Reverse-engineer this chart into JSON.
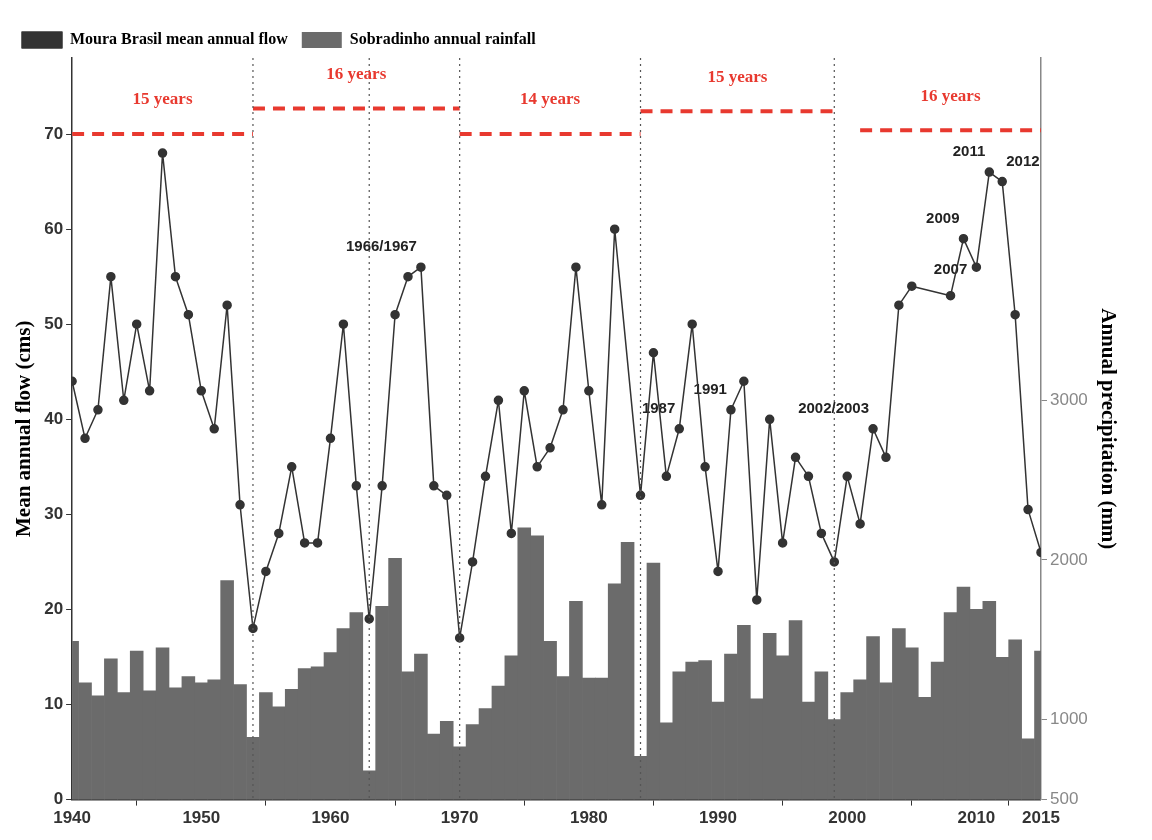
{
  "chart_data": {
    "type": "bar",
    "xlabel": null,
    "ylabel": "Mean annual flow (cms)",
    "y2label": "Annual precipitation (mm)",
    "x": [
      1940,
      1941,
      1942,
      1943,
      1944,
      1945,
      1946,
      1947,
      1948,
      1949,
      1950,
      1951,
      1952,
      1953,
      1954,
      1955,
      1956,
      1957,
      1958,
      1959,
      1960,
      1961,
      1962,
      1963,
      1964,
      1965,
      1966,
      1967,
      1968,
      1969,
      1970,
      1971,
      1972,
      1973,
      1974,
      1975,
      1976,
      1977,
      1978,
      1979,
      1980,
      1981,
      1982,
      1983,
      1984,
      1985,
      1986,
      1987,
      1988,
      1989,
      1990,
      1991,
      1992,
      1993,
      1994,
      1995,
      1996,
      1997,
      1998,
      1999,
      2000,
      2001,
      2002,
      2003,
      2004,
      2005,
      2006,
      2007,
      2008,
      2009,
      2010,
      2011,
      2012,
      2013,
      2014,
      2015
    ],
    "series": [
      {
        "name": "Moura Brasil mean annual flow",
        "type": "line",
        "axis": "y",
        "color": "#333333",
        "marker": "circle",
        "line_style": "solid",
        "values": [
          44,
          38,
          41,
          55,
          42,
          50,
          43,
          68,
          55,
          51,
          43,
          39,
          52,
          31,
          18,
          24,
          28,
          35,
          27,
          27,
          38,
          50,
          33,
          19,
          33,
          51,
          55,
          56,
          33,
          32,
          17,
          25,
          34,
          42,
          28,
          43,
          35,
          37,
          41,
          56,
          43,
          31,
          60,
          null,
          32,
          47,
          34,
          39,
          50,
          35,
          24,
          41,
          44,
          21,
          40,
          27,
          36,
          34,
          28,
          25,
          34,
          29,
          39,
          36,
          52,
          54,
          null,
          null,
          53,
          59,
          56,
          66,
          65,
          51,
          30.5,
          26
        ]
      },
      {
        "name": "Sobradinho annual rainfall",
        "axis": "y2",
        "color": "#6b6b6b",
        "values": [
          1490,
          1230,
          1150,
          1380,
          1170,
          1430,
          1180,
          1450,
          1200,
          1270,
          1230,
          1250,
          1870,
          1220,
          890,
          1170,
          1080,
          1190,
          1320,
          1330,
          1420,
          1570,
          1670,
          680,
          1710,
          2010,
          1300,
          1410,
          910,
          990,
          830,
          970,
          1070,
          1210,
          1400,
          2200,
          2150,
          1490,
          1270,
          1740,
          1260,
          1260,
          1850,
          2110,
          770,
          1980,
          980,
          1300,
          1360,
          1370,
          1110,
          1410,
          1590,
          1130,
          1540,
          1400,
          1620,
          1110,
          1300,
          1000,
          1170,
          1250,
          1520,
          1230,
          1570,
          1450,
          1140,
          1360,
          1670,
          1830,
          1690,
          1740,
          1390,
          1500,
          880,
          1430
        ]
      },
      {
        "name": "15 years",
        "type": "line",
        "axis": "y",
        "color": "#e8392f",
        "marker": "none",
        "line_style": "dashed",
        "x": [
          1940,
          1954
        ],
        "values": [
          70,
          70
        ]
      },
      {
        "name": "16 years",
        "type": "line",
        "axis": "y",
        "color": "#e8392f",
        "marker": "none",
        "line_style": "dashed",
        "x": [
          1954,
          1970
        ],
        "values": [
          72.7,
          72.7
        ]
      },
      {
        "name": "14 years",
        "type": "line",
        "axis": "y",
        "color": "#e8392f",
        "marker": "none",
        "line_style": "dashed",
        "x": [
          1970,
          1984
        ],
        "values": [
          70,
          70
        ]
      },
      {
        "name": "15 years",
        "type": "line",
        "axis": "y",
        "color": "#e8392f",
        "marker": "none",
        "line_style": "dashed",
        "x": [
          1984,
          1999
        ],
        "values": [
          72.4,
          72.4
        ]
      },
      {
        "name": "16 years",
        "type": "line",
        "axis": "y",
        "color": "#e8392f",
        "marker": "none",
        "line_style": "dashed",
        "x": [
          2001,
          2015
        ],
        "values": [
          70.4,
          70.4
        ]
      }
    ],
    "xlim": [
      1940,
      2015
    ],
    "xticks": [
      1940,
      1950,
      1960,
      1970,
      1980,
      1990,
      2000,
      2010,
      2015
    ],
    "ylim": [
      0,
      78
    ],
    "yticks": [
      0,
      10,
      20,
      30,
      40,
      50,
      60,
      70
    ],
    "y2lim": [
      500,
      5140
    ],
    "y2ticks": [
      500,
      1000,
      2000,
      3000
    ],
    "ref_lines": [
      {
        "axis": "x",
        "value": 1954,
        "color": "#555555",
        "line_style": "dotted"
      },
      {
        "axis": "x",
        "value": 1963,
        "color": "#555555",
        "line_style": "dotted"
      },
      {
        "axis": "x",
        "value": 1970,
        "color": "#555555",
        "line_style": "dotted"
      },
      {
        "axis": "x",
        "value": 1984,
        "color": "#555555",
        "line_style": "dotted"
      },
      {
        "axis": "x",
        "value": 1999,
        "color": "#555555",
        "line_style": "dotted"
      }
    ],
    "annotations": [
      {
        "text": "1966/1967",
        "x": 1967,
        "y": 56
      },
      {
        "text": "1987",
        "x": 1987,
        "y": 39
      },
      {
        "text": "1991",
        "x": 1991,
        "y": 41
      },
      {
        "text": "2002/2003",
        "x": 2002,
        "y": 39
      },
      {
        "text": "2007",
        "x": 2008,
        "y": 53
      },
      {
        "text": "2009",
        "x": 2009,
        "y": 59
      },
      {
        "text": "2011",
        "x": 2011,
        "y": 66
      },
      {
        "text": "2012",
        "x": 2012,
        "y": 65
      }
    ],
    "grid": false,
    "legend": "top left"
  }
}
